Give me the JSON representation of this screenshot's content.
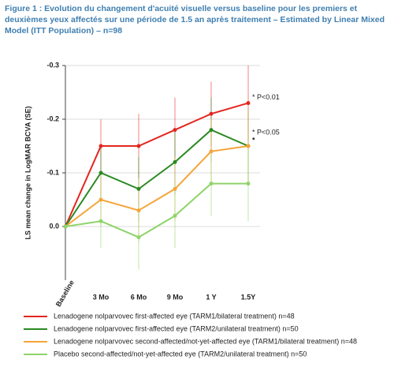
{
  "chart_data": {
    "type": "line",
    "title": "Figure 1 : Evolution du changement d'acuité visuelle versus baseline pour les premiers et deuxièmes yeux affectés sur une période de 1.5 an après traitement – Estimated by Linear Mixed Model (ITT Population) – n=98",
    "y_label": "LS mean change in LogMAR BCVA (SE)",
    "categories": [
      "Baseline",
      "3 Mo",
      "6 Mo",
      "9 Mo",
      "1 Y",
      "1.5Y"
    ],
    "ylim": [
      -0.3,
      0.1
    ],
    "y_inverted": true,
    "yticks": [
      -0.3,
      -0.2,
      -0.1,
      {
        "value": 0,
        "label": "0.0"
      }
    ],
    "grid": true,
    "series": [
      {
        "name": "Lenadogene nolparvovec first-affected eye (TARM1/bilateral treatment) n=48",
        "color": "#e3261e",
        "values": [
          0,
          -0.15,
          -0.15,
          -0.18,
          -0.21,
          -0.23
        ],
        "errors": [
          0,
          0.05,
          0.06,
          0.06,
          0.06,
          0.07
        ]
      },
      {
        "name": "Lenadogene nolparvovec first-affected eye (TARM2/unilateral treatment) n=50",
        "color": "#2a8a22",
        "values": [
          0,
          -0.1,
          -0.07,
          -0.12,
          -0.18,
          -0.15
        ],
        "errors": [
          0,
          0.05,
          0.06,
          0.06,
          0.06,
          0.07
        ]
      },
      {
        "name": "Lenadogene nolparvovec second-affected/not-yet-affected eye (TARM1/bilateral treatment) n=48",
        "color": "#f5a53a",
        "values": [
          0,
          -0.05,
          -0.03,
          -0.07,
          -0.14,
          -0.15
        ],
        "errors": [
          0,
          0.05,
          0.06,
          0.06,
          0.06,
          0.07
        ]
      },
      {
        "name": "Placebo second-affected/not-yet-affected eye (TARM2/unilateral treatment) n=50",
        "color": "#8fd46a",
        "values": [
          0,
          -0.01,
          0.02,
          -0.02,
          -0.08,
          -0.08
        ],
        "errors": [
          0,
          0.05,
          0.06,
          0.06,
          0.06,
          0.07
        ]
      }
    ],
    "annotations": [
      "* P<0.01",
      "* P<0.05",
      "*"
    ]
  }
}
